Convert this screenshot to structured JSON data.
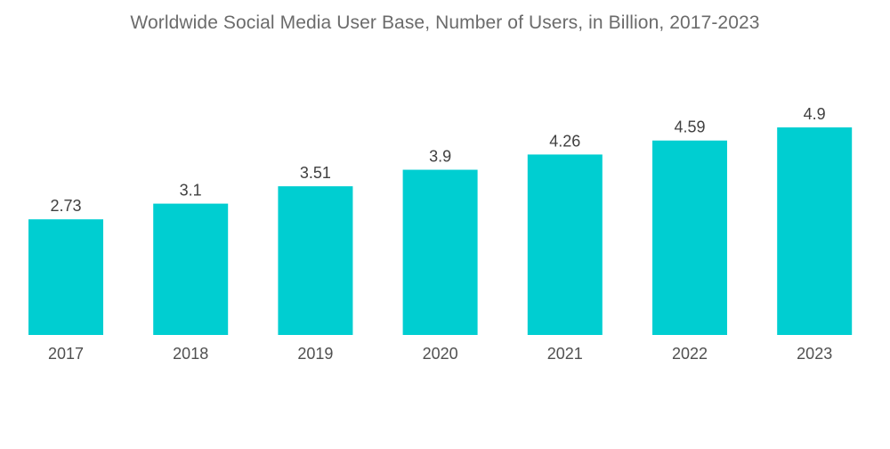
{
  "chart_data": {
    "type": "bar",
    "title": "Worldwide Social Media User Base, Number of Users, in Billion, 2017-2023",
    "xlabel": "",
    "ylabel": "",
    "categories": [
      "2017",
      "2018",
      "2019",
      "2020",
      "2021",
      "2022",
      "2023"
    ],
    "values": [
      2.73,
      3.1,
      3.51,
      3.9,
      4.26,
      4.59,
      4.9
    ],
    "ylim": [
      0,
      5.5
    ],
    "grid": false,
    "legend": "none",
    "data_labels": true,
    "bar_color": "#00ced1"
  }
}
